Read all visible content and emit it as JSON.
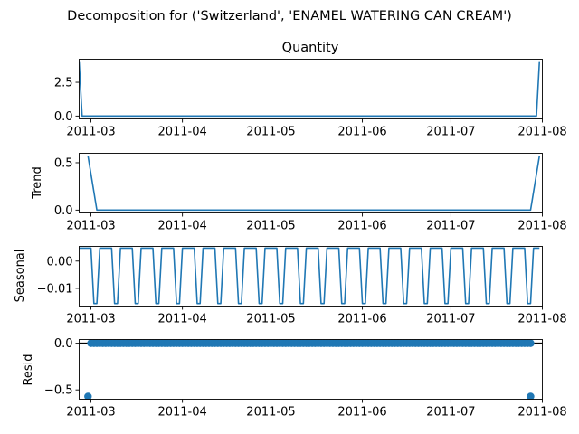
{
  "figure": {
    "suptitle": "Decomposition for ('Switzerland', 'ENAMEL WATERING CAN CREAM')"
  },
  "chart_data": [
    {
      "type": "line",
      "id": "observed",
      "title": "Quantity",
      "ylabel": "",
      "color": "#1f77b4",
      "x_start": "2011-02-25",
      "x_end": "2011-07-31",
      "xlim": [
        "2011-02-25",
        "2011-08-01"
      ],
      "ylim": [
        -0.21,
        4.21
      ],
      "yticks": [
        0.0,
        2.5
      ],
      "ytick_labels": [
        "0.0",
        "2.5"
      ],
      "xtick_dates": [
        "2011-03-01",
        "2011-04-01",
        "2011-05-01",
        "2011-06-01",
        "2011-07-01",
        "2011-08-01"
      ],
      "xtick_labels": [
        "2011-03",
        "2011-04",
        "2011-05",
        "2011-06",
        "2011-07",
        "2011-08"
      ],
      "x": [
        "2011-02-25",
        "2011-02-26",
        "2011-07-30",
        "2011-07-31"
      ],
      "values": [
        4.0,
        0.0,
        0.0,
        4.0
      ]
    },
    {
      "type": "line",
      "id": "trend",
      "title": "",
      "ylabel": "Trend",
      "color": "#1f77b4",
      "xlim": [
        "2011-02-25",
        "2011-08-01"
      ],
      "ylim": [
        -0.03,
        0.6
      ],
      "yticks": [
        0.0,
        0.5
      ],
      "ytick_labels": [
        "0.0",
        "0.5"
      ],
      "xtick_dates": [
        "2011-03-01",
        "2011-04-01",
        "2011-05-01",
        "2011-06-01",
        "2011-07-01",
        "2011-08-01"
      ],
      "xtick_labels": [
        "2011-03",
        "2011-04",
        "2011-05",
        "2011-06",
        "2011-07",
        "2011-08"
      ],
      "x": [
        "2011-02-28",
        "2011-03-03",
        "2011-07-28",
        "2011-07-31"
      ],
      "values": [
        0.571,
        0.0,
        0.0,
        0.571
      ]
    },
    {
      "type": "line",
      "id": "seasonal",
      "title": "",
      "ylabel": "Seasonal",
      "color": "#1f77b4",
      "xlim": [
        "2011-02-25",
        "2011-08-01"
      ],
      "ylim": [
        -0.0165,
        0.0054
      ],
      "yticks": [
        0.0,
        -0.01
      ],
      "ytick_labels": [
        "0.00",
        "−0.01"
      ],
      "xtick_dates": [
        "2011-03-01",
        "2011-04-01",
        "2011-05-01",
        "2011-06-01",
        "2011-07-01",
        "2011-08-01"
      ],
      "xtick_labels": [
        "2011-03",
        "2011-04",
        "2011-05",
        "2011-06",
        "2011-07",
        "2011-08"
      ],
      "period_days": 7,
      "pattern": [
        0.00476,
        0.00476,
        0.00476,
        0.00476,
        0.00476,
        -0.01555,
        -0.01555
      ],
      "x_start": "2011-02-25",
      "x_end": "2011-07-31"
    },
    {
      "type": "scatter",
      "id": "resid",
      "title": "",
      "ylabel": "Resid",
      "color": "#1f77b4",
      "xlim": [
        "2011-02-25",
        "2011-08-01"
      ],
      "ylim": [
        -0.6,
        0.04
      ],
      "yticks": [
        0.0,
        -0.5
      ],
      "ytick_labels": [
        "0.0",
        "−0.5"
      ],
      "xtick_dates": [
        "2011-03-01",
        "2011-04-01",
        "2011-05-01",
        "2011-06-01",
        "2011-07-01",
        "2011-08-01"
      ],
      "xtick_labels": [
        "2011-03",
        "2011-04",
        "2011-05",
        "2011-06",
        "2011-07",
        "2011-08"
      ],
      "baseline": 0.0,
      "zero_points": {
        "x_start": "2011-03-01",
        "x_end": "2011-07-28",
        "every_days": 1,
        "value": 0.0
      },
      "x": [
        "2011-02-28",
        "2011-07-28"
      ],
      "values": [
        -0.571,
        -0.571
      ]
    }
  ]
}
